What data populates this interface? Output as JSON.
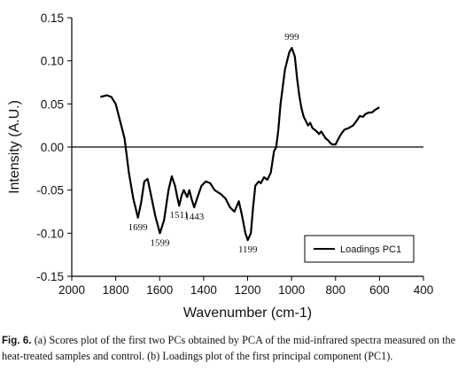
{
  "header_fragment": "",
  "chart_data": {
    "type": "line",
    "xlabel": "Wavenumber (cm-1)",
    "ylabel": "Intensity (A.U.)",
    "xlim": [
      2000,
      400
    ],
    "ylim": [
      -0.15,
      0.15
    ],
    "x_ticks": [
      2000,
      1800,
      1600,
      1400,
      1200,
      1000,
      800,
      600,
      400
    ],
    "x_tick_labels": [
      "2000",
      "1800",
      "1600",
      "1400",
      "1200",
      "1000",
      "800",
      "600",
      "400"
    ],
    "y_ticks": [
      0.15,
      0.1,
      0.05,
      0.0,
      -0.05,
      -0.1,
      -0.15
    ],
    "y_tick_labels": [
      "0.15",
      "0.10",
      "0.05",
      "0.00",
      "-0.05",
      "-0.10",
      "-0.15"
    ],
    "zero_line": true,
    "legend": {
      "position": "bottom-right",
      "entries": [
        "Loadings PC1"
      ]
    },
    "series": [
      {
        "name": "Loadings PC1",
        "color": "#000000",
        "points": [
          [
            1870,
            0.058
          ],
          [
            1840,
            0.06
          ],
          [
            1820,
            0.058
          ],
          [
            1800,
            0.05
          ],
          [
            1780,
            0.03
          ],
          [
            1760,
            0.01
          ],
          [
            1740,
            -0.03
          ],
          [
            1720,
            -0.06
          ],
          [
            1699,
            -0.082
          ],
          [
            1685,
            -0.065
          ],
          [
            1670,
            -0.04
          ],
          [
            1655,
            -0.037
          ],
          [
            1640,
            -0.055
          ],
          [
            1620,
            -0.08
          ],
          [
            1599,
            -0.1
          ],
          [
            1580,
            -0.085
          ],
          [
            1560,
            -0.05
          ],
          [
            1545,
            -0.034
          ],
          [
            1530,
            -0.045
          ],
          [
            1520,
            -0.058
          ],
          [
            1511,
            -0.068
          ],
          [
            1500,
            -0.056
          ],
          [
            1490,
            -0.05
          ],
          [
            1475,
            -0.058
          ],
          [
            1465,
            -0.05
          ],
          [
            1455,
            -0.06
          ],
          [
            1443,
            -0.07
          ],
          [
            1430,
            -0.06
          ],
          [
            1410,
            -0.045
          ],
          [
            1390,
            -0.04
          ],
          [
            1370,
            -0.042
          ],
          [
            1350,
            -0.05
          ],
          [
            1320,
            -0.055
          ],
          [
            1300,
            -0.06
          ],
          [
            1280,
            -0.07
          ],
          [
            1260,
            -0.075
          ],
          [
            1240,
            -0.063
          ],
          [
            1225,
            -0.08
          ],
          [
            1210,
            -0.1
          ],
          [
            1199,
            -0.108
          ],
          [
            1185,
            -0.1
          ],
          [
            1175,
            -0.07
          ],
          [
            1165,
            -0.045
          ],
          [
            1150,
            -0.04
          ],
          [
            1140,
            -0.042
          ],
          [
            1125,
            -0.035
          ],
          [
            1110,
            -0.038
          ],
          [
            1095,
            -0.03
          ],
          [
            1080,
            -0.005
          ],
          [
            1070,
            0.0
          ],
          [
            1060,
            0.02
          ],
          [
            1050,
            0.05
          ],
          [
            1030,
            0.09
          ],
          [
            1010,
            0.11
          ],
          [
            999,
            0.115
          ],
          [
            985,
            0.105
          ],
          [
            975,
            0.08
          ],
          [
            965,
            0.06
          ],
          [
            955,
            0.045
          ],
          [
            945,
            0.035
          ],
          [
            935,
            0.03
          ],
          [
            925,
            0.025
          ],
          [
            915,
            0.028
          ],
          [
            905,
            0.022
          ],
          [
            895,
            0.02
          ],
          [
            885,
            0.018
          ],
          [
            875,
            0.015
          ],
          [
            865,
            0.018
          ],
          [
            855,
            0.014
          ],
          [
            845,
            0.01
          ],
          [
            835,
            0.008
          ],
          [
            825,
            0.005
          ],
          [
            815,
            0.003
          ],
          [
            800,
            0.003
          ],
          [
            790,
            0.008
          ],
          [
            775,
            0.015
          ],
          [
            760,
            0.02
          ],
          [
            740,
            0.022
          ],
          [
            720,
            0.025
          ],
          [
            700,
            0.032
          ],
          [
            690,
            0.036
          ],
          [
            675,
            0.035
          ],
          [
            665,
            0.038
          ],
          [
            650,
            0.04
          ],
          [
            635,
            0.04
          ],
          [
            620,
            0.043
          ],
          [
            600,
            0.046
          ]
        ]
      }
    ],
    "annotations": [
      {
        "text": "999",
        "x": 999,
        "y": 0.115,
        "anchor": "above"
      },
      {
        "text": "1699",
        "x": 1699,
        "y": -0.082,
        "anchor": "below"
      },
      {
        "text": "1599",
        "x": 1599,
        "y": -0.1,
        "anchor": "below"
      },
      {
        "text": "1511",
        "x": 1511,
        "y": -0.068,
        "anchor": "below"
      },
      {
        "text": "1443",
        "x": 1443,
        "y": -0.07,
        "anchor": "below"
      },
      {
        "text": "1199",
        "x": 1199,
        "y": -0.108,
        "anchor": "below"
      }
    ]
  },
  "caption": {
    "label": "Fig. 6.",
    "text": " (a) Scores plot of the first two PCs obtained by PCA of the mid-infrared spectra measured on the heat-treated samples and control. (b) Loadings plot of the first principal component (PC1)."
  }
}
